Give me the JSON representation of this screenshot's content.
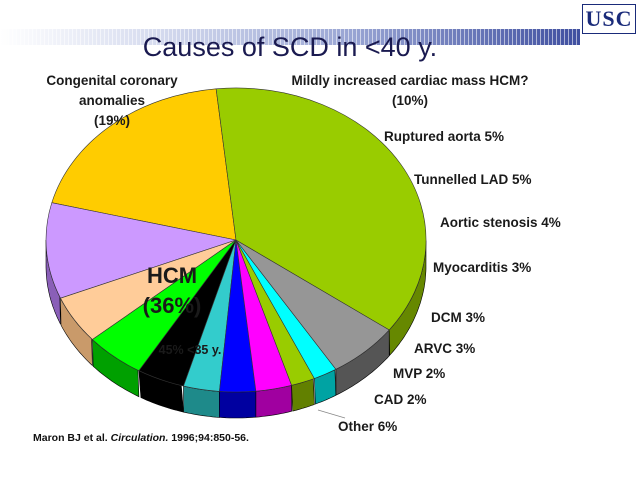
{
  "header": {
    "logo_text": "USC",
    "title": "Causes of SCD in <40 y."
  },
  "chart_data": {
    "type": "pie",
    "title": "Causes of SCD in <40 y.",
    "slices": [
      {
        "key": "congenital",
        "lines": [
          "Congenital coronary",
          "anomalies",
          "(19%)"
        ],
        "value": 19,
        "color": "#FFCC00",
        "side": "#B08C00"
      },
      {
        "key": "mildly",
        "lines": [
          "Mildly increased cardiac mass  HCM?",
          "(10%)"
        ],
        "value": 10,
        "color": "#CC99FF",
        "side": "#8A5FB8"
      },
      {
        "key": "aorta",
        "lines": [
          "Ruptured aorta 5%"
        ],
        "value": 5,
        "color": "#FFCC99",
        "side": "#C99A6A"
      },
      {
        "key": "tunnelled",
        "lines": [
          "Tunnelled LAD 5%"
        ],
        "value": 5,
        "color": "#00FF00",
        "side": "#00A000"
      },
      {
        "key": "aortic",
        "lines": [
          "Aortic stenosis 4%"
        ],
        "value": 4,
        "color": "#000000",
        "side": "#000000"
      },
      {
        "key": "myocarditis",
        "lines": [
          "Myocarditis 3%"
        ],
        "value": 3,
        "color": "#33CCCC",
        "side": "#1E8A8A"
      },
      {
        "key": "dcm",
        "lines": [
          "DCM 3%"
        ],
        "value": 3,
        "color": "#0000FF",
        "side": "#0000A0"
      },
      {
        "key": "arvc",
        "lines": [
          "ARVC 3%"
        ],
        "value": 3,
        "color": "#FF00FF",
        "side": "#A000A0"
      },
      {
        "key": "mvp",
        "lines": [
          "MVP 2%"
        ],
        "value": 2,
        "color": "#99CC00",
        "side": "#628000"
      },
      {
        "key": "cad",
        "lines": [
          "CAD 2%"
        ],
        "value": 2,
        "color": "#00FFFF",
        "side": "#00A3A3"
      },
      {
        "key": "other",
        "lines": [
          "Other 6%"
        ],
        "value": 6,
        "color": "#969696",
        "side": "#555555"
      },
      {
        "key": "hcm",
        "lines": [
          "HCM",
          "(36%)"
        ],
        "sublabel": "45% <35 y.",
        "value": 36,
        "color": "#99CC00",
        "side": "#668800"
      }
    ]
  },
  "citation": {
    "prefix": "Maron BJ et al. ",
    "journal": "Circulation.",
    "suffix": " 1996;94:850-56."
  }
}
